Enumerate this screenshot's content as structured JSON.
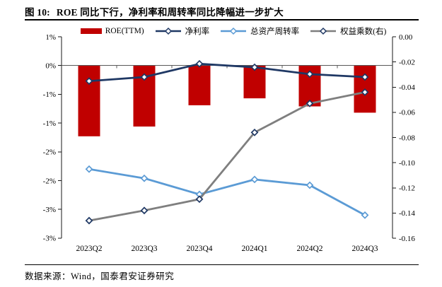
{
  "header": {
    "tag": "图 10:",
    "title": "ROE 同比下行，净利率和周转率同比降幅进一步扩大"
  },
  "footer": {
    "source": "数据来源：Wind，国泰君安证券研究"
  },
  "chart_data": {
    "type": "bar",
    "combo": "bar+line, dual axis",
    "title": "ROE 同比下行，净利率和周转率同比降幅进一步扩大",
    "categories": [
      "2023Q2",
      "2023Q3",
      "2023Q4",
      "2024Q1",
      "2024Q2",
      "2024Q3"
    ],
    "series": [
      {
        "name": "ROE(TTM)",
        "type": "bar",
        "axis": "left",
        "color": "#C00000",
        "values": [
          -1.23,
          -1.06,
          -0.69,
          -0.57,
          -0.71,
          -0.82
        ]
      },
      {
        "name": "净利率",
        "type": "line",
        "axis": "left",
        "color": "#1F3864",
        "marker_color": "#1F3864",
        "values": [
          -0.27,
          -0.2,
          0.03,
          -0.03,
          -0.15,
          -0.2
        ]
      },
      {
        "name": "总资产周转率",
        "type": "line",
        "axis": "left",
        "color": "#5B9BD5",
        "marker_color": "#5B9BD5",
        "values": [
          -1.8,
          -1.96,
          -2.24,
          -1.98,
          -2.08,
          -2.6
        ]
      },
      {
        "name": "权益乘数(右)",
        "type": "line",
        "axis": "right",
        "color": "#7F7F7F",
        "marker_color": "#1F3864",
        "values": [
          -0.146,
          -0.138,
          -0.129,
          -0.076,
          -0.053,
          -0.044
        ]
      }
    ],
    "left_axis": {
      "unit": "%",
      "range": [
        0.5,
        -3.0
      ],
      "tick_values": [
        0.5,
        0,
        -0.5,
        -1,
        -1.5,
        -2,
        -2.5,
        -3
      ],
      "tick_labels": [
        "1%",
        "0%",
        "-1%",
        "-1%",
        "-2%",
        "-2%",
        "-3%",
        "-3%"
      ]
    },
    "right_axis": {
      "range": [
        0,
        -0.16
      ],
      "tick_values": [
        0,
        -0.02,
        -0.04,
        -0.06,
        -0.08,
        -0.1,
        -0.12,
        -0.14,
        -0.16
      ],
      "tick_labels": [
        "0.00",
        "-0.02",
        "-0.04",
        "-0.06",
        "-0.08",
        "-0.10",
        "-0.12",
        "-0.14",
        "-0.16"
      ]
    },
    "legend_position": "top",
    "grid": false,
    "category_axis_at_zero": true
  }
}
